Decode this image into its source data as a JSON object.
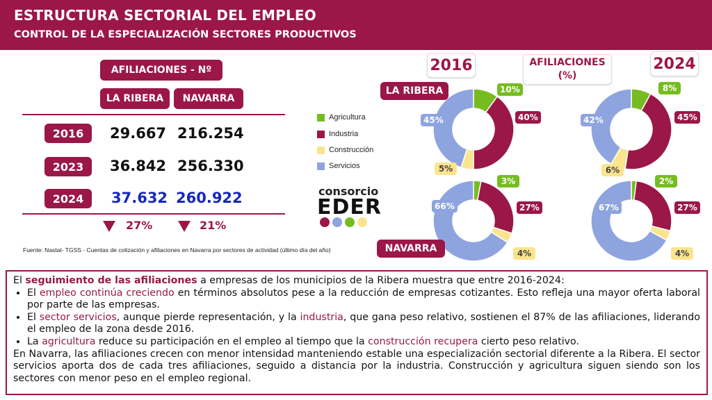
{
  "header": {
    "title": "ESTRUCTURA SECTORIAL DEL EMPLEO",
    "subtitle": "CONTROL DE LA ESPECIALIZACIÓN SECTORES PRODUCTIVOS"
  },
  "table": {
    "heading": "AFILIACIONES  - Nº",
    "col1": "LA RIBERA",
    "col2": "NAVARRA",
    "rows": [
      {
        "year": "2016",
        "ribera": "29.667",
        "navarra": "216.254"
      },
      {
        "year": "2023",
        "ribera": "36.842",
        "navarra": "256.330"
      },
      {
        "year": "2024",
        "ribera": "37.632",
        "navarra": "260.922"
      }
    ],
    "change_ribera": "27%",
    "change_navarra": "21%"
  },
  "source": "Fuente: Nastat- TGSS - Cuentas de cotización y afiliaciones en Navarra  por sectores de actividad (último día del año)",
  "legend": [
    {
      "label": "Agricultura",
      "color": "#76bc21"
    },
    {
      "label": "Industria",
      "color": "#9b1748"
    },
    {
      "label": "Construcción",
      "color": "#fbe48e"
    },
    {
      "label": "Servicios",
      "color": "#8ea4de"
    }
  ],
  "logo": {
    "top": "consorcio",
    "main": "EDER"
  },
  "charts_header": {
    "year_left": "2016",
    "year_right": "2024",
    "measure_line1": "AFILIACIONES",
    "measure_line2": "(%)",
    "region1": "LA RIBERA",
    "region2": "NAVARRA"
  },
  "chart_data": [
    {
      "type": "pie",
      "title": "",
      "region": "LA RIBERA",
      "year": "2016",
      "categories": [
        "Agricultura",
        "Industria",
        "Construcción",
        "Servicios"
      ],
      "values": [
        10,
        40,
        5,
        45
      ],
      "labels": [
        "10%",
        "40%",
        "5%",
        "45%"
      ]
    },
    {
      "type": "pie",
      "title": "",
      "region": "LA RIBERA",
      "year": "2024",
      "categories": [
        "Agricultura",
        "Industria",
        "Construcción",
        "Servicios"
      ],
      "values": [
        8,
        45,
        6,
        42
      ],
      "labels": [
        "8%",
        "45%",
        "6%",
        "42%"
      ]
    },
    {
      "type": "pie",
      "title": "",
      "region": "NAVARRA",
      "year": "2016",
      "categories": [
        "Agricultura",
        "Industria",
        "Construcción",
        "Servicios"
      ],
      "values": [
        3,
        27,
        4,
        66
      ],
      "labels": [
        "3%",
        "27%",
        "4%",
        "66%"
      ]
    },
    {
      "type": "pie",
      "title": "",
      "region": "NAVARRA",
      "year": "2024",
      "categories": [
        "Agricultura",
        "Industria",
        "Construcción",
        "Servicios"
      ],
      "values": [
        2,
        27,
        4,
        67
      ],
      "labels": [
        "2%",
        "27%",
        "4%",
        "67%"
      ]
    }
  ],
  "text": {
    "intro_pre": "El ",
    "intro_hl": "seguimiento de las afiliaciones",
    "intro_post": " a empresas de los municipios de la Ribera muestra que entre 2016-2024:",
    "b1_pre": "El ",
    "b1_hl": "empleo continúa creciendo",
    "b1_post": " en términos absolutos pese a la reducción de empresas cotizantes. Esto refleja una mayor oferta laboral por parte de las empresas.",
    "b2_pre": "El ",
    "b2_hl1": "sector servicios",
    "b2_mid": ", aunque pierde representación, y la ",
    "b2_hl2": "industria",
    "b2_post": ", que gana peso relativo, sostienen el 87% de las afiliaciones, liderando el empleo de la zona desde 2016.",
    "b3_pre": "La ",
    "b3_hl1": "agricultura",
    "b3_mid": " reduce su participación en el empleo al tiempo que la ",
    "b3_hl2": "construcción recupera",
    "b3_post": " cierto peso relativo.",
    "closing": "En Navarra, las afiliaciones crecen con menor intensidad manteniendo estable una especialización sectorial diferente a la Ribera. El sector servicios aporta dos de cada tres afiliaciones, seguido a distancia por la industria. Construcción y agricultura siguen siendo son los sectores con menor peso en el empleo regional."
  }
}
